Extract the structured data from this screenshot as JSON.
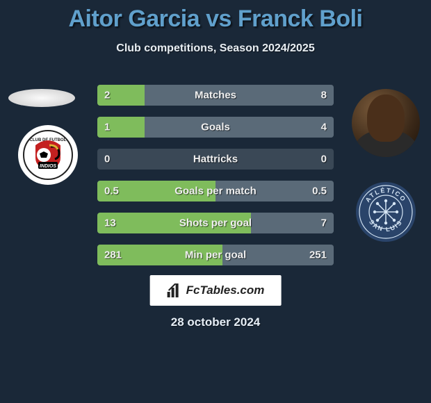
{
  "title": "Aitor Garcia vs Franck Boli",
  "subtitle": "Club competitions, Season 2024/2025",
  "title_color": "#60a0cc",
  "background_color": "#1a2838",
  "rows": [
    {
      "label": "Matches",
      "left": "2",
      "right": "8",
      "lfrac": 0.2,
      "rfrac": 0.8
    },
    {
      "label": "Goals",
      "left": "1",
      "right": "4",
      "lfrac": 0.2,
      "rfrac": 0.8
    },
    {
      "label": "Hattricks",
      "left": "0",
      "right": "0",
      "lfrac": 0.0,
      "rfrac": 0.0
    },
    {
      "label": "Goals per match",
      "left": "0.5",
      "right": "0.5",
      "lfrac": 0.5,
      "rfrac": 0.5
    },
    {
      "label": "Shots per goal",
      "left": "13",
      "right": "7",
      "lfrac": 0.65,
      "rfrac": 0.35
    },
    {
      "label": "Min per goal",
      "left": "281",
      "right": "251",
      "lfrac": 0.53,
      "rfrac": 0.47
    }
  ],
  "bar_left_color": "#7fbc5c",
  "bar_right_color": "#5a6a78",
  "bar_bg_color": "#3a4856",
  "row_label_fontsize": 15,
  "value_fontsize": 15,
  "crest_left": {
    "primary": "#c42020",
    "secondary": "#000000",
    "ball": "#ffffff",
    "banner_text": "INDIOS"
  },
  "crest_right": {
    "bg": "#2a446a",
    "ring": "#d6e6f5",
    "text_top": "ATLÉTICO",
    "text_bottom": "SAN LUIS"
  },
  "footer_brand": "FcTables.com",
  "date": "28 october 2024"
}
